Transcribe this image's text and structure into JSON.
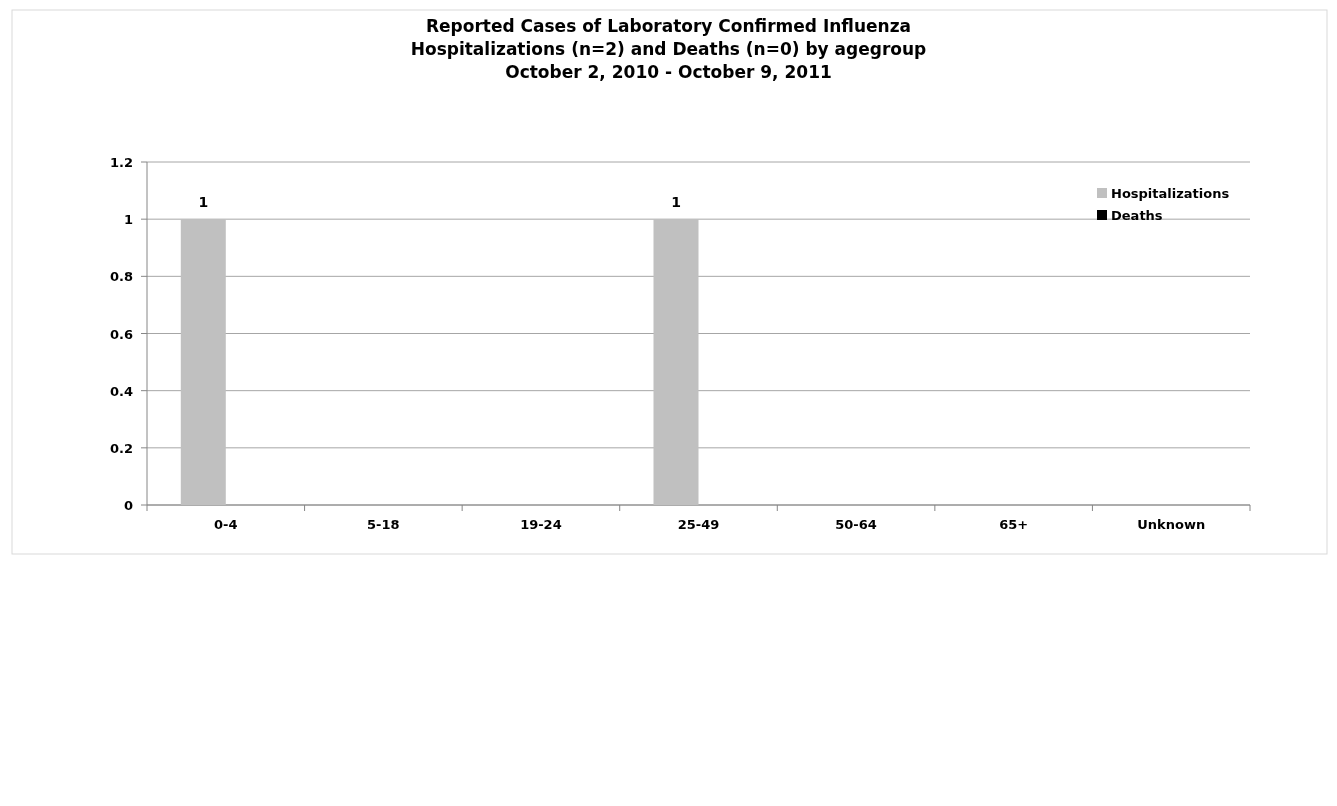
{
  "chart_data": {
    "type": "bar",
    "title": "Reported Cases of Laboratory Confirmed Influenza\nHospitalizations (n=2) and Deaths (n=0) by agegroup\nOctober 2, 2010 - October 9, 2011",
    "categories": [
      "0-4",
      "5-18",
      "19-24",
      "25-49",
      "50-64",
      "65+",
      "Unknown"
    ],
    "series": [
      {
        "name": "Hospitalizations",
        "color": "#c0c0c0",
        "values": [
          1,
          0,
          0,
          1,
          0,
          0,
          0
        ],
        "value_labels": [
          "1",
          null,
          null,
          "1",
          null,
          null,
          null
        ]
      },
      {
        "name": "Deaths",
        "color": "#000000",
        "values": [
          0,
          0,
          0,
          0,
          0,
          0,
          0
        ]
      }
    ],
    "ylim": [
      0,
      1.2
    ],
    "yticks": [
      0,
      0.2,
      0.4,
      0.6,
      0.8,
      1,
      1.2
    ],
    "grid": "y",
    "legend": "top right"
  }
}
